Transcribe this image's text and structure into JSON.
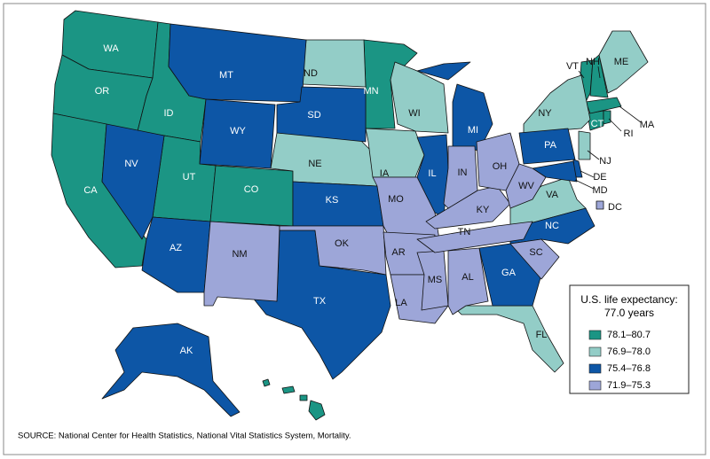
{
  "legend": {
    "title": "U.S. life expectancy:",
    "subtitle": "77.0 years",
    "items": [
      {
        "label": "78.1–80.7",
        "color": "#1b9584",
        "states": [
          "WA",
          "OR",
          "CA",
          "ID",
          "UT",
          "CO",
          "MN",
          "VT",
          "NH",
          "CT",
          "MA",
          "RI",
          "HI"
        ]
      },
      {
        "label": "76.9–78.0",
        "color": "#93cdc7",
        "states": [
          "ND",
          "NE",
          "IA",
          "WI",
          "NY",
          "ME",
          "NJ",
          "VA",
          "FL"
        ]
      },
      {
        "label": "75.4–76.8",
        "color": "#0d56a6",
        "states": [
          "MT",
          "WY",
          "SD",
          "NV",
          "AZ",
          "KS",
          "TX",
          "IL",
          "MI",
          "PA",
          "DE",
          "MD",
          "NC",
          "GA",
          "AK"
        ]
      },
      {
        "label": "71.9–75.3",
        "color": "#9da6d8",
        "states": [
          "NM",
          "OK",
          "MO",
          "AR",
          "LA",
          "MS",
          "AL",
          "TN",
          "KY",
          "IN",
          "OH",
          "WV",
          "SC",
          "DC"
        ]
      }
    ]
  },
  "source": "SOURCE: National Center for Health Statistics, National Vital Statistics System, Mortality."
}
